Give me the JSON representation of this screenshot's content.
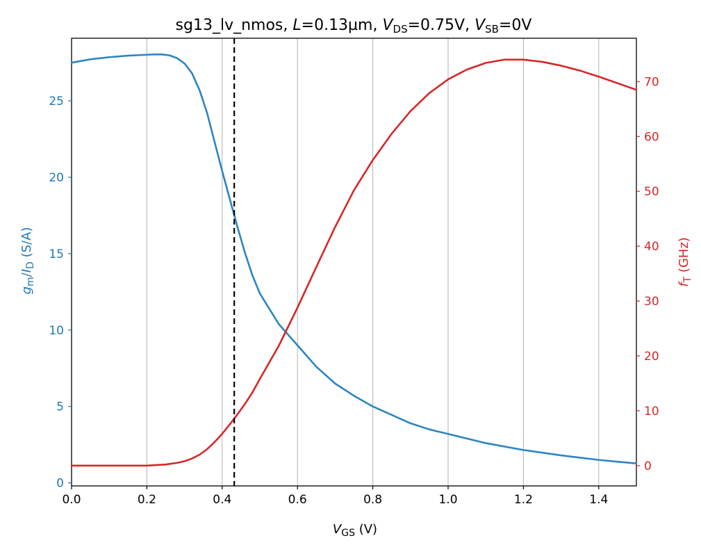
{
  "chart_data": {
    "type": "line",
    "title": {
      "prefix": "sg13_lv_nmos, ",
      "L_sym": "L",
      "L_val": "=0.13µm, ",
      "VDS_sym": "V",
      "VDS_sub": "DS",
      "VDS_val": "=0.75V, ",
      "VSB_sym": "V",
      "VSB_sub": "SB",
      "VSB_val": "=0V"
    },
    "xlabel": {
      "sym": "V",
      "sub": "GS",
      "unit": " (V)"
    },
    "ylabel_left": {
      "sym1": "g",
      "sub1": "m",
      "slash": "/",
      "sym2": "I",
      "sub2": "D",
      "unit": " (S/A)"
    },
    "ylabel_right": {
      "sym": "f",
      "sub": "T",
      "unit": " (GHz)"
    },
    "xlim": [
      0,
      1.5
    ],
    "ylim_left": [
      -0.2,
      29.1
    ],
    "ylim_right": [
      -3.7,
      77.9
    ],
    "xticks": [
      "0.0",
      "0.2",
      "0.4",
      "0.6",
      "0.8",
      "1.0",
      "1.2",
      "1.4"
    ],
    "yticks_left": [
      "0",
      "5",
      "10",
      "15",
      "20",
      "25"
    ],
    "yticks_right": [
      "0",
      "10",
      "20",
      "30",
      "40",
      "50",
      "60",
      "70"
    ],
    "vertical_grid": true,
    "marker_vgs": 0.432,
    "colors": {
      "left_axis": "#1f77b4",
      "left_series": "#2b85c1",
      "right_axis": "#d62728",
      "right_series": "#d62728"
    },
    "series": [
      {
        "axis": "left",
        "x": [
          0,
          0.05,
          0.1,
          0.15,
          0.2,
          0.22,
          0.24,
          0.26,
          0.28,
          0.3,
          0.32,
          0.34,
          0.36,
          0.38,
          0.4,
          0.42,
          0.44,
          0.46,
          0.48,
          0.5,
          0.55,
          0.6,
          0.65,
          0.7,
          0.75,
          0.8,
          0.85,
          0.9,
          0.95,
          1.0,
          1.1,
          1.2,
          1.3,
          1.4,
          1.5
        ],
        "values": [
          27.5,
          27.72,
          27.86,
          27.96,
          28.02,
          28.04,
          28.04,
          27.98,
          27.8,
          27.45,
          26.8,
          25.7,
          24.2,
          22.3,
          20.4,
          18.6,
          16.8,
          15.1,
          13.6,
          12.4,
          10.4,
          9.0,
          7.6,
          6.5,
          5.7,
          5.0,
          4.45,
          3.9,
          3.5,
          3.2,
          2.6,
          2.15,
          1.8,
          1.5,
          1.27
        ]
      },
      {
        "axis": "right",
        "x": [
          0,
          0.1,
          0.2,
          0.25,
          0.28,
          0.3,
          0.32,
          0.34,
          0.36,
          0.38,
          0.4,
          0.42,
          0.44,
          0.46,
          0.48,
          0.5,
          0.55,
          0.6,
          0.65,
          0.7,
          0.75,
          0.8,
          0.85,
          0.9,
          0.95,
          1.0,
          1.05,
          1.1,
          1.15,
          1.2,
          1.25,
          1.3,
          1.35,
          1.4,
          1.45,
          1.5
        ],
        "values": [
          0.0,
          0.0,
          0.0,
          0.2,
          0.5,
          0.8,
          1.3,
          2.0,
          3.0,
          4.3,
          5.8,
          7.5,
          9.3,
          11.2,
          13.3,
          15.8,
          21.8,
          28.8,
          36.2,
          43.5,
          50.2,
          55.7,
          60.5,
          64.6,
          67.9,
          70.4,
          72.2,
          73.4,
          74.0,
          74.0,
          73.6,
          72.9,
          72.0,
          70.9,
          69.7,
          68.5
        ]
      }
    ]
  }
}
